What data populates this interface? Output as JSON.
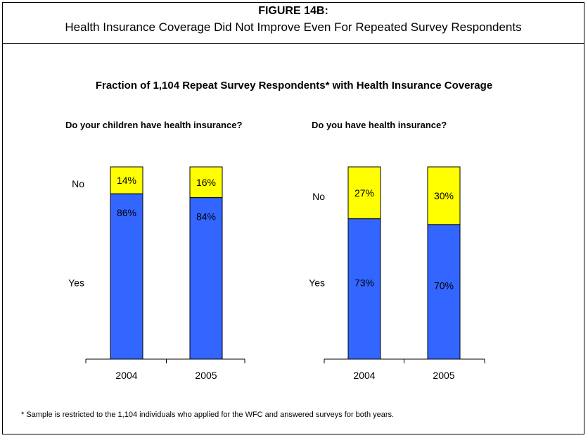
{
  "figure": {
    "label": "FIGURE 14B:",
    "subtitle": "Health Insurance Coverage Did Not Improve Even For Repeated Survey Respondents"
  },
  "footnote": "* Sample is restricted to the 1,104 individuals who applied for the WFC and answered surveys for both years.",
  "colors": {
    "yes": "#3366FF",
    "no": "#FFFF00",
    "stroke": "#000000"
  },
  "chart_data": {
    "type": "bar",
    "stacked": true,
    "title": "Fraction of 1,104 Repeat Survey Respondents* with Health Insurance Coverage",
    "ylim": [
      0,
      100
    ],
    "grid": false,
    "legend": "none",
    "row_labels": [
      "No",
      "Yes"
    ],
    "panels": [
      {
        "title": "Do your children have health insurance?",
        "categories": [
          "2004",
          "2005"
        ],
        "series": [
          {
            "name": "Yes",
            "values": [
              86,
              84
            ]
          },
          {
            "name": "No",
            "values": [
              14,
              16
            ]
          }
        ]
      },
      {
        "title": "Do you have health insurance?",
        "categories": [
          "2004",
          "2005"
        ],
        "series": [
          {
            "name": "Yes",
            "values": [
              73,
              70
            ]
          },
          {
            "name": "No",
            "values": [
              27,
              30
            ]
          }
        ]
      }
    ]
  }
}
